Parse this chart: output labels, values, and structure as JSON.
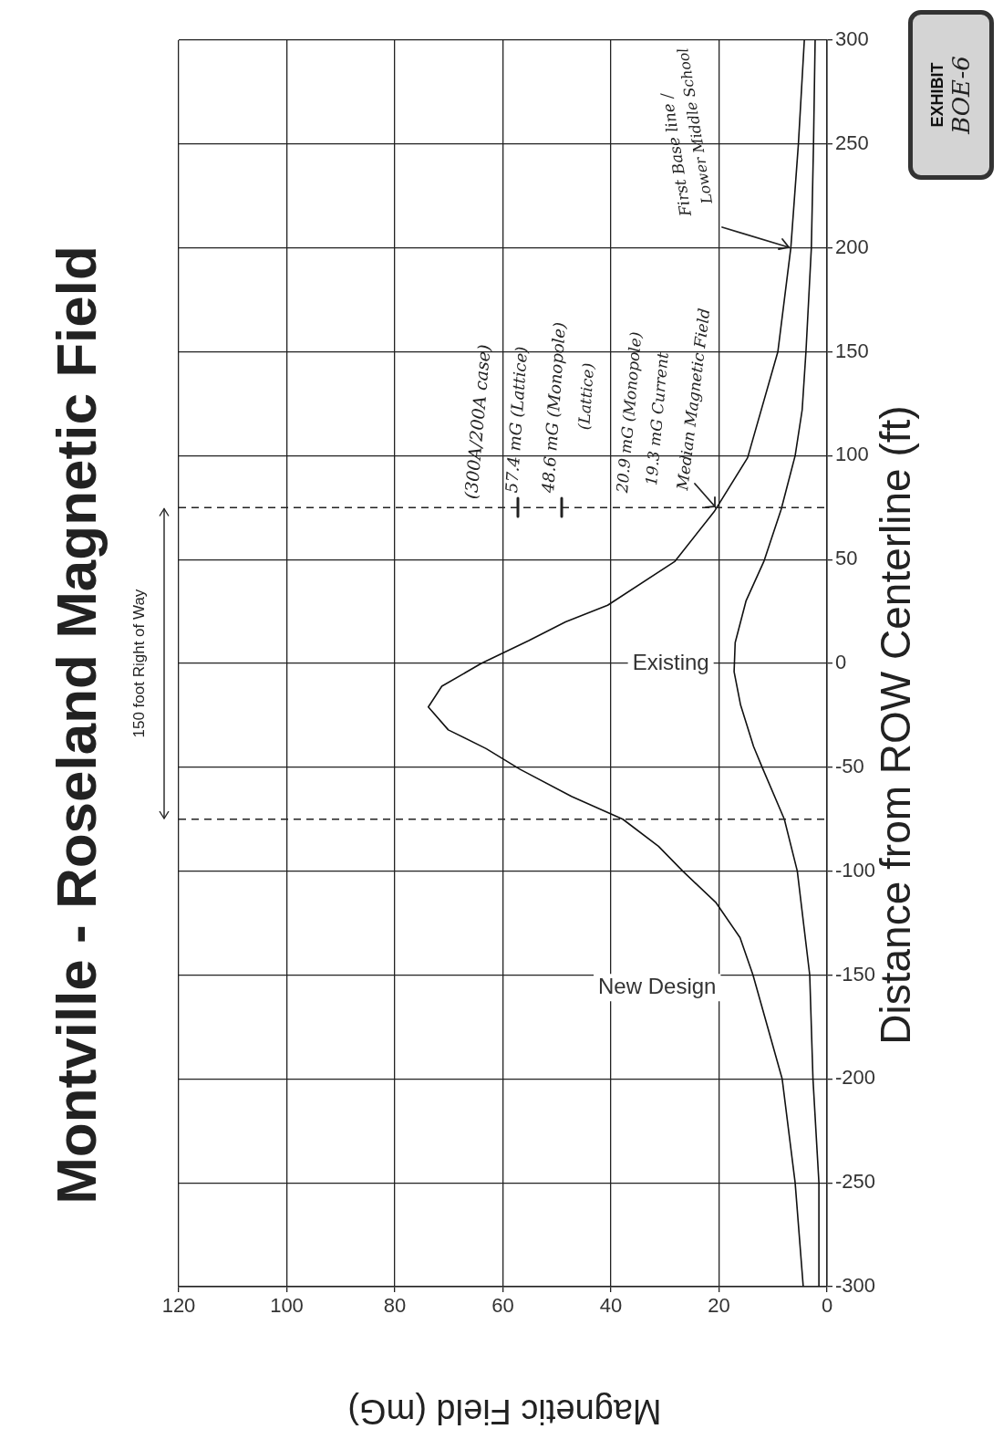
{
  "chart_data": {
    "type": "line",
    "title": "Montville - Roseland Magnetic Field",
    "xlabel": "Magnetic Field (mG)",
    "ylabel": "Distance from ROW Centerline (ft)",
    "xlim": [
      120,
      0
    ],
    "xticks": [
      120,
      100,
      80,
      60,
      40,
      20,
      0
    ],
    "ylim": [
      -300,
      300
    ],
    "yticks": [
      -300,
      -250,
      -200,
      -150,
      -100,
      -50,
      0,
      50,
      100,
      150,
      200,
      250,
      300
    ],
    "grid": true,
    "legend": false,
    "marker": "none",
    "line_style": "solid",
    "series": [
      {
        "name": "New Design",
        "color": "#111111",
        "x": [
          4.4,
          5.9,
          8.3,
          13.7,
          16.1,
          20.6,
          26.7,
          31.2,
          37.8,
          47.3,
          56.8,
          63.1,
          70.1,
          73.8,
          71.3,
          64.0,
          55.2,
          48.4,
          40.6,
          28.2,
          20.9,
          14.7,
          9.1,
          6.7,
          5.3,
          4.2
        ],
        "values": [
          -300,
          -250,
          -200,
          -150,
          -132,
          -115,
          -100,
          -88,
          -75,
          -64,
          -51,
          -41,
          -32,
          -21,
          -11,
          0,
          11,
          20,
          28,
          49,
          73,
          99,
          150,
          200,
          250,
          300
        ]
      },
      {
        "name": "Existing",
        "color": "#111111",
        "x": [
          1.4,
          1.5,
          2.6,
          3.2,
          5.5,
          7.9,
          12.0,
          13.6,
          16.0,
          17.2,
          17.0,
          15.0,
          11.7,
          8.5,
          5.9,
          4.6,
          3.9,
          2.9,
          2.5,
          2.2
        ],
        "values": [
          -300,
          -250,
          -200,
          -150,
          -100,
          -75,
          -50,
          -40,
          -20,
          -4,
          10,
          30,
          49,
          74,
          100,
          122,
          150,
          200,
          250,
          300
        ]
      }
    ],
    "ref_lines": [
      {
        "axis": "y",
        "value": -75,
        "line_style": "dashed",
        "color": "#222222"
      },
      {
        "axis": "y",
        "value": 75,
        "line_style": "dashed",
        "color": "#222222"
      }
    ],
    "annotations": [
      "150 foot Right of Way",
      "(300A/200A case)",
      "57.4 mG (Lattice)",
      "48.6 mG (Monopole)",
      "(Lattice)",
      "20.9 mG (Monopole)",
      "19.3 mG Current",
      "Median Magnetic Field",
      "First Base line /",
      "Lower Middle School",
      "EXHIBIT",
      "BOE-6"
    ]
  }
}
